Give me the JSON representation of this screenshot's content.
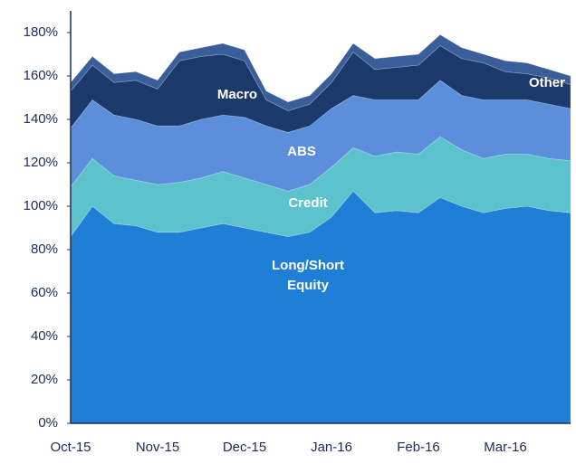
{
  "chart_data": {
    "type": "stacked_area",
    "categories": [
      "Oct-15",
      null,
      null,
      null,
      "Nov-15",
      null,
      null,
      null,
      "Dec-15",
      null,
      null,
      null,
      "Jan-16",
      null,
      null,
      null,
      "Feb-16",
      null,
      null,
      null,
      "Mar-16",
      null,
      null,
      null
    ],
    "series": [
      {
        "name": "Long/Short Equity",
        "color": "#1f7fd6",
        "values": [
          86,
          100,
          92,
          91,
          88,
          88,
          90,
          92,
          90,
          88,
          86,
          88,
          95,
          107,
          97,
          98,
          97,
          104,
          100,
          97,
          99,
          100,
          98,
          97
        ]
      },
      {
        "name": "Credit",
        "color": "#5cc3cc",
        "values": [
          23,
          22,
          22,
          21,
          22,
          23,
          23,
          24,
          23,
          22,
          21,
          22,
          23,
          20,
          26,
          27,
          27,
          28,
          26,
          25,
          25,
          24,
          24,
          24
        ]
      },
      {
        "name": "ABS",
        "color": "#5b8fdc",
        "values": [
          27,
          27,
          28,
          28,
          27,
          26,
          27,
          26,
          28,
          27,
          27,
          27,
          27,
          24,
          26,
          24,
          25,
          26,
          25,
          27,
          25,
          25,
          25,
          24
        ]
      },
      {
        "name": "Macro",
        "color": "#1b3a6b",
        "values": [
          17,
          16,
          15,
          18,
          17,
          30,
          29,
          28,
          26,
          12,
          10,
          10,
          12,
          20,
          14,
          15,
          16,
          16,
          17,
          17,
          13,
          12,
          12,
          11
        ]
      },
      {
        "name": "Other",
        "color": "#3a5e9a",
        "values": [
          4,
          4,
          4,
          4,
          4,
          4,
          4,
          5,
          5,
          4,
          4,
          4,
          4,
          4,
          5,
          5,
          5,
          5,
          5,
          4,
          5,
          5,
          4,
          4
        ]
      }
    ],
    "ylim": [
      0,
      190
    ],
    "yticks": [
      {
        "value": 0,
        "label": "0%"
      },
      {
        "value": 20,
        "label": "20%"
      },
      {
        "value": 40,
        "label": "40%"
      },
      {
        "value": 60,
        "label": "60%"
      },
      {
        "value": 80,
        "label": "80%"
      },
      {
        "value": 100,
        "label": "100%"
      },
      {
        "value": 120,
        "label": "120%"
      },
      {
        "value": 140,
        "label": "140%"
      },
      {
        "value": 160,
        "label": "160%"
      },
      {
        "value": 180,
        "label": "180%"
      }
    ]
  }
}
